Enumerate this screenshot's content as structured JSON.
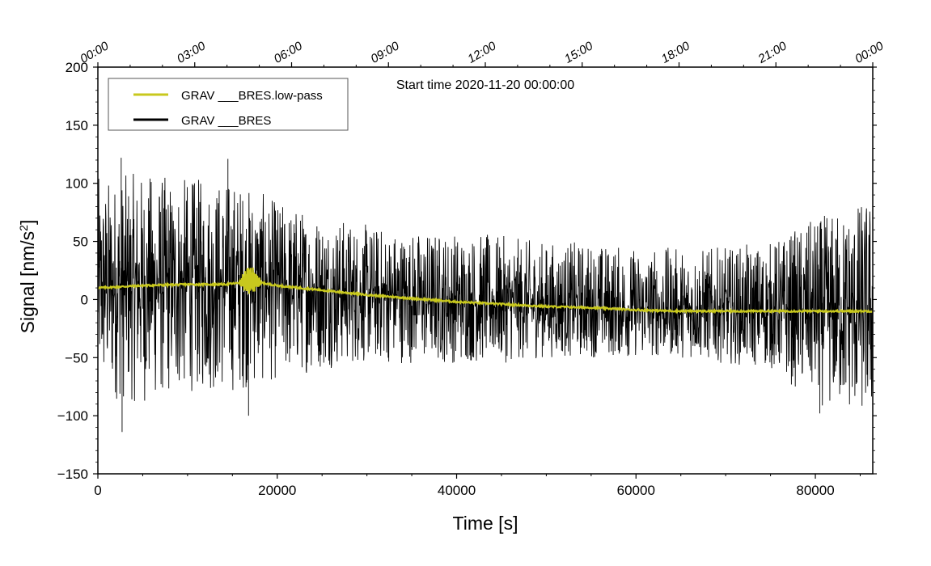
{
  "chart_data": {
    "type": "line",
    "annotation": "Start time 2020-11-20 00:00:00",
    "xlabel": "Time [s]",
    "ylabel_main": "Signal [nm/s",
    "ylabel_sup": "2",
    "ylabel_tail": "]",
    "xlim": [
      0,
      86400
    ],
    "ylim": [
      -150,
      200
    ],
    "x_ticks": [
      0,
      20000,
      40000,
      60000,
      80000
    ],
    "x_tick_labels": [
      "0",
      "20000",
      "40000",
      "60000",
      "80000"
    ],
    "y_ticks": [
      -150,
      -100,
      -50,
      0,
      50,
      100,
      150,
      200
    ],
    "y_tick_labels": [
      "−150",
      "−100",
      "−50",
      "0",
      "50",
      "100",
      "150",
      "200"
    ],
    "top_ticks_seconds": [
      0,
      10800,
      21600,
      32400,
      43200,
      54000,
      64800,
      75600,
      86400
    ],
    "top_tick_labels": [
      "00:00",
      "03:00",
      "06:00",
      "09:00",
      "12:00",
      "15:00",
      "18:00",
      "21:00",
      "00:00"
    ],
    "legend_position": "top-left",
    "series": [
      {
        "name": "GRAV ___BRES.low-pass",
        "color": "#c8c81e",
        "x": [
          0,
          5000,
          10000,
          14000,
          15500,
          16500,
          17000,
          17500,
          18500,
          20000,
          25000,
          30000,
          35000,
          40000,
          45000,
          50000,
          55000,
          60000,
          65000,
          70000,
          75000,
          80000,
          86400
        ],
        "values": [
          10,
          12,
          13,
          13,
          14,
          16,
          17,
          16,
          14,
          12,
          8,
          4,
          1,
          -2,
          -4,
          -6,
          -7,
          -9,
          -10,
          -10,
          -10,
          -10,
          -10
        ],
        "burst": {
          "center": 17000,
          "halfwidth": 1300,
          "amplitude": 12
        }
      },
      {
        "name": "GRAV ___BRES",
        "color": "#000000",
        "envelope_x": [
          0,
          5000,
          10000,
          15000,
          20000,
          25000,
          30000,
          35000,
          40000,
          45000,
          50000,
          55000,
          60000,
          65000,
          70000,
          75000,
          80000,
          86400
        ],
        "envelope_upper": [
          105,
          110,
          105,
          105,
          85,
          75,
          65,
          60,
          60,
          55,
          50,
          50,
          45,
          45,
          45,
          50,
          70,
          90
        ],
        "envelope_lower": [
          -85,
          -90,
          -80,
          -80,
          -70,
          -60,
          -55,
          -55,
          -55,
          -55,
          -50,
          -50,
          -50,
          -50,
          -55,
          -60,
          -90,
          -105
        ],
        "extremes": [
          [
            2600,
            122
          ],
          [
            2700,
            -114
          ],
          [
            14500,
            121
          ],
          [
            16800,
            -100
          ],
          [
            80500,
            -98
          ]
        ]
      }
    ]
  }
}
